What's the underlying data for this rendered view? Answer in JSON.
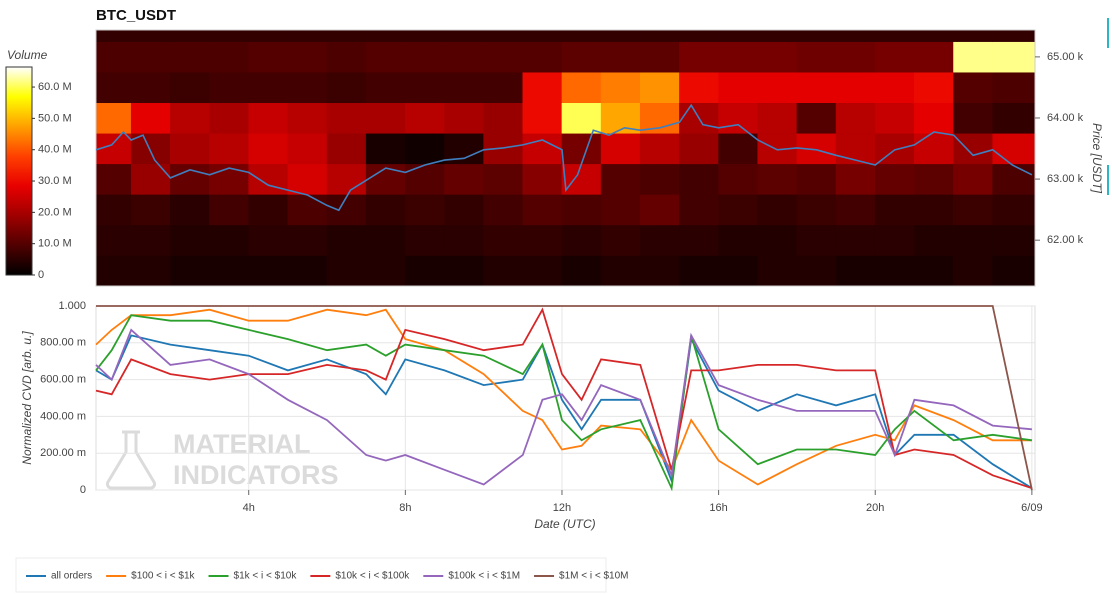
{
  "chart_data": [
    {
      "type": "heatmap",
      "title": "BTC_USDT",
      "x_edges": [
        0.1,
        1,
        2,
        3,
        4,
        5,
        6,
        7,
        8,
        9,
        10,
        11,
        12,
        13,
        14,
        15,
        16,
        17,
        18,
        19,
        20,
        21,
        22,
        23,
        24.08
      ],
      "y_edges": [
        61250,
        61750,
        62250,
        62750,
        63250,
        63750,
        64250,
        64750,
        65250,
        65440
      ],
      "values": [
        [
          4,
          4,
          3,
          3,
          3,
          3,
          4,
          4,
          3,
          3,
          4,
          4,
          3,
          4,
          4,
          3,
          3,
          4,
          4,
          3,
          3,
          3,
          4,
          3
        ],
        [
          5,
          5,
          4,
          4,
          5,
          5,
          4,
          4,
          5,
          5,
          6,
          6,
          5,
          6,
          5,
          5,
          4,
          4,
          5,
          5,
          5,
          4,
          4,
          4
        ],
        [
          6,
          7,
          5,
          8,
          6,
          9,
          8,
          6,
          7,
          6,
          8,
          10,
          9,
          10,
          12,
          8,
          7,
          6,
          7,
          8,
          6,
          6,
          7,
          6
        ],
        [
          10,
          18,
          12,
          14,
          22,
          26,
          22,
          12,
          10,
          12,
          11,
          16,
          24,
          10,
          9,
          8,
          10,
          11,
          10,
          14,
          12,
          11,
          14,
          9
        ],
        [
          24,
          16,
          20,
          22,
          26,
          24,
          18,
          3,
          2,
          4,
          18,
          24,
          14,
          26,
          22,
          18,
          8,
          22,
          26,
          22,
          20,
          24,
          18,
          26
        ],
        [
          42,
          28,
          22,
          20,
          24,
          22,
          20,
          20,
          22,
          20,
          18,
          30,
          60,
          48,
          42,
          20,
          24,
          22,
          10,
          22,
          24,
          28,
          8,
          6
        ],
        [
          8,
          8,
          7,
          8,
          8,
          8,
          7,
          8,
          8,
          8,
          8,
          30,
          42,
          44,
          46,
          30,
          28,
          28,
          28,
          28,
          28,
          30,
          10,
          9
        ],
        [
          9,
          9,
          9,
          9,
          10,
          10,
          9,
          10,
          10,
          10,
          10,
          10,
          11,
          11,
          11,
          14,
          14,
          14,
          13,
          13,
          14,
          14,
          62,
          62
        ],
        [
          6,
          6,
          6,
          6,
          6,
          6,
          6,
          6,
          6,
          6,
          6,
          6,
          6,
          6,
          6,
          6,
          6,
          6,
          6,
          6,
          6,
          6,
          6,
          6
        ]
      ],
      "colorscale": [
        "#000000",
        "#500000",
        "#a00000",
        "#e80000",
        "#ff4000",
        "#ffa000",
        "#ffff00",
        "#ffffff"
      ],
      "zlim": [
        0,
        66.4
      ],
      "colorbar_label": "Volume",
      "colorbar_ticks": [
        0,
        {
          "value": 10,
          "label": "10.0 M"
        },
        {
          "value": 20,
          "label": "20.0 M"
        },
        {
          "value": 30,
          "label": "30.0 M"
        },
        {
          "value": 40,
          "label": "40.0 M"
        },
        {
          "value": 50,
          "label": "50.0 M"
        },
        {
          "value": 60,
          "label": "60.0 M"
        }
      ],
      "xlim": [
        0.1,
        24.08
      ],
      "ylim": [
        61250,
        65440
      ],
      "yticks": [
        {
          "value": 62000,
          "label": "62.00 k"
        },
        {
          "value": 63000,
          "label": "63.00 k"
        },
        {
          "value": 64000,
          "label": "64.00 k"
        },
        {
          "value": 65000,
          "label": "65.00 k"
        }
      ],
      "y_label": "Price [USDT]",
      "price_line": {
        "color": "#3f7fbf",
        "x": [
          0.1,
          0.5,
          0.8,
          1,
          1.3,
          1.6,
          2,
          2.5,
          3,
          3.5,
          4,
          4.5,
          5,
          5.5,
          6,
          6.3,
          6.6,
          7,
          7.5,
          8,
          8.5,
          9,
          9.5,
          10,
          10.5,
          11,
          11.5,
          12,
          12.1,
          12.4,
          12.8,
          13.2,
          13.6,
          14,
          14.5,
          15,
          15.3,
          15.6,
          16,
          16.5,
          17,
          17.5,
          18,
          18.5,
          19,
          19.5,
          20,
          20.5,
          21,
          21.5,
          22,
          22.5,
          23,
          23.5,
          24
        ],
        "values": [
          63480,
          63560,
          63770,
          63640,
          63720,
          63310,
          63020,
          63150,
          63070,
          63180,
          63110,
          62900,
          62820,
          62740,
          62570,
          62490,
          62820,
          62980,
          63180,
          63110,
          63230,
          63310,
          63340,
          63480,
          63510,
          63560,
          63640,
          63480,
          62820,
          63070,
          63800,
          63720,
          63840,
          63800,
          63840,
          63930,
          64210,
          63890,
          63840,
          63890,
          63640,
          63480,
          63510,
          63480,
          63390,
          63310,
          63230,
          63480,
          63560,
          63770,
          63720,
          63390,
          63480,
          63230,
          63070
        ]
      }
    },
    {
      "type": "line",
      "x": [
        0.1,
        0.5,
        1,
        2,
        3,
        4,
        5,
        6,
        7,
        7.5,
        8,
        9,
        10,
        11,
        11.5,
        12,
        12.5,
        13,
        14,
        14.8,
        15.3,
        16,
        17,
        18,
        19,
        20,
        20.5,
        21,
        22,
        23,
        24
      ],
      "series": [
        {
          "name": "all orders",
          "color": "#1f77b4",
          "values": [
            0.65,
            0.6,
            0.84,
            0.79,
            0.76,
            0.73,
            0.65,
            0.71,
            0.63,
            0.52,
            0.71,
            0.65,
            0.57,
            0.6,
            0.79,
            0.49,
            0.33,
            0.49,
            0.49,
            0.05,
            0.82,
            0.54,
            0.43,
            0.52,
            0.46,
            0.52,
            0.19,
            0.3,
            0.3,
            0.14,
            0.01
          ]
        },
        {
          "name": "$100 < i < $1k",
          "color": "#ff7f0e",
          "values": [
            0.79,
            0.87,
            0.95,
            0.95,
            0.98,
            0.92,
            0.92,
            0.98,
            0.95,
            0.98,
            0.82,
            0.76,
            0.63,
            0.43,
            0.38,
            0.22,
            0.24,
            0.35,
            0.33,
            0.11,
            0.38,
            0.16,
            0.03,
            0.14,
            0.24,
            0.3,
            0.27,
            0.46,
            0.38,
            0.27,
            0.27
          ]
        },
        {
          "name": "$1k < i < $10k",
          "color": "#2ca02c",
          "values": [
            0.65,
            0.76,
            0.95,
            0.92,
            0.92,
            0.87,
            0.82,
            0.76,
            0.79,
            0.73,
            0.79,
            0.76,
            0.73,
            0.63,
            0.79,
            0.38,
            0.27,
            0.33,
            0.38,
            0.01,
            0.84,
            0.33,
            0.14,
            0.22,
            0.22,
            0.19,
            0.33,
            0.43,
            0.27,
            0.3,
            0.27
          ]
        },
        {
          "name": "$10k < i < $100k",
          "color": "#d62728",
          "values": [
            0.54,
            0.52,
            0.71,
            0.63,
            0.6,
            0.63,
            0.63,
            0.68,
            0.65,
            0.6,
            0.87,
            0.82,
            0.76,
            0.79,
            0.98,
            0.63,
            0.49,
            0.71,
            0.68,
            0.11,
            0.65,
            0.65,
            0.68,
            0.68,
            0.65,
            0.65,
            0.19,
            0.22,
            0.19,
            0.08,
            0.01
          ]
        },
        {
          "name": "$100k < i < $1M",
          "color": "#9467bd",
          "values": [
            0.68,
            0.6,
            0.87,
            0.68,
            0.71,
            0.63,
            0.49,
            0.38,
            0.19,
            0.16,
            0.19,
            0.11,
            0.03,
            0.19,
            0.49,
            0.52,
            0.38,
            0.57,
            0.49,
            0.08,
            0.84,
            0.57,
            0.49,
            0.43,
            0.43,
            0.43,
            0.19,
            0.49,
            0.46,
            0.35,
            0.33
          ]
        },
        {
          "name": "$1M < i < $10M",
          "color": "#8c564b",
          "values": [
            1,
            1,
            1,
            1,
            1,
            1,
            1,
            1,
            1,
            1,
            1,
            1,
            1,
            1,
            1,
            1,
            1,
            1,
            1,
            1,
            1,
            1,
            1,
            1,
            1,
            1,
            1,
            1,
            1,
            1,
            0
          ]
        }
      ],
      "xlim": [
        0.1,
        24.08
      ],
      "xticks": [
        {
          "value": 4,
          "label": "4h"
        },
        {
          "value": 8,
          "label": "8h"
        },
        {
          "value": 12,
          "label": "12h"
        },
        {
          "value": 16,
          "label": "16h"
        },
        {
          "value": 20,
          "label": "20h"
        },
        {
          "value": 24,
          "label": "6/09"
        }
      ],
      "ylim": [
        0,
        1
      ],
      "yticks": [
        0,
        {
          "value": 0.2,
          "label": "200.00 m"
        },
        {
          "value": 0.4,
          "label": "400.00 m"
        },
        {
          "value": 0.6,
          "label": "600.00 m"
        },
        {
          "value": 0.8,
          "label": "800.00 m"
        },
        {
          "value": 1,
          "label": "1.000"
        }
      ],
      "x_label": "Date (UTC)",
      "y_label": "Normalized CVD [arb. u.]",
      "grid": true,
      "watermark": [
        "MATERIAL",
        "INDICATORS"
      ]
    }
  ]
}
